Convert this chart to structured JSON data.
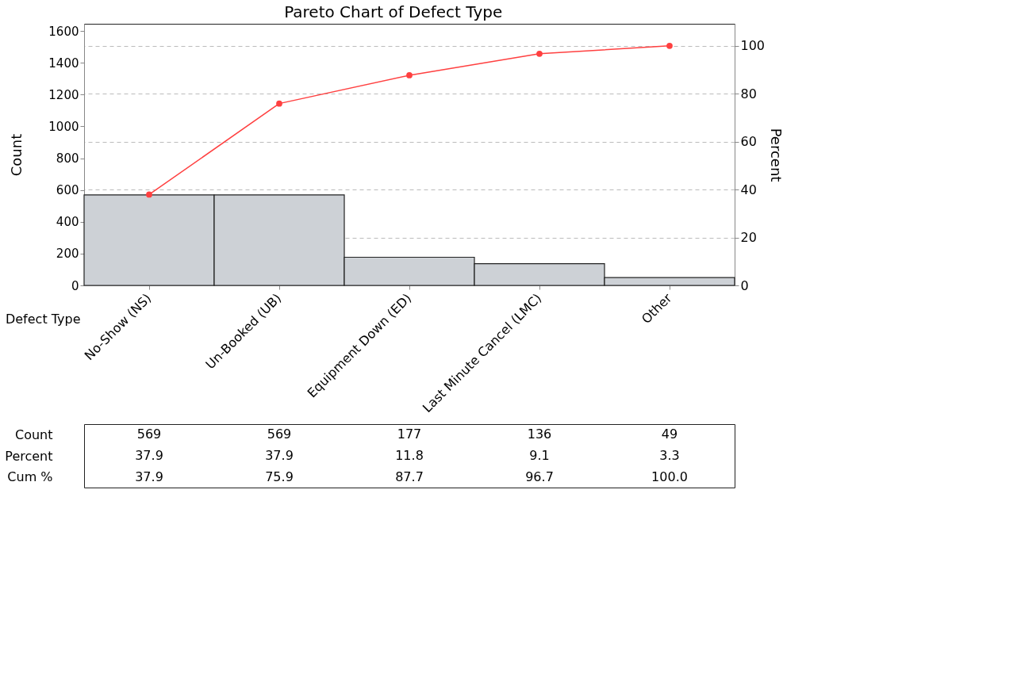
{
  "chart_data": {
    "type": "bar",
    "title": "Pareto Chart of Defect Type",
    "xlabel": "Defect Type",
    "ylabel": "Count",
    "y2label": "Percent",
    "categories": [
      "No-Show (NS)",
      "Un-Booked (UB)",
      "Equipment Down (ED)",
      "Last Minute Cancel (LMC)",
      "Other"
    ],
    "series": [
      {
        "color": "#cdd1d6",
        "values": [
          569,
          569,
          177,
          136,
          49
        ],
        "value_labels": [
          "569",
          "569",
          "177",
          "136",
          "49"
        ]
      },
      {
        "type": "line",
        "axis": "y2",
        "color": "#ff4040",
        "values": [
          37.9,
          75.9,
          87.7,
          96.7,
          100.0
        ],
        "value_labels": [
          "37.9",
          "75.9",
          "87.7",
          "96.7",
          "100.0"
        ]
      }
    ],
    "annotations": [
      "Count",
      "Percent",
      "Cum %",
      "37.9",
      "37.9",
      "11.8",
      "9.1",
      "3.3"
    ],
    "ylim": [
      0,
      1645
    ],
    "yticks": [
      0,
      200,
      400,
      600,
      800,
      1000,
      1200,
      1400,
      1600
    ],
    "y2lim": [
      0,
      109.2
    ],
    "y2ticks": [
      0,
      20,
      40,
      60,
      80,
      100
    ],
    "grid": true,
    "marker": "circle"
  }
}
